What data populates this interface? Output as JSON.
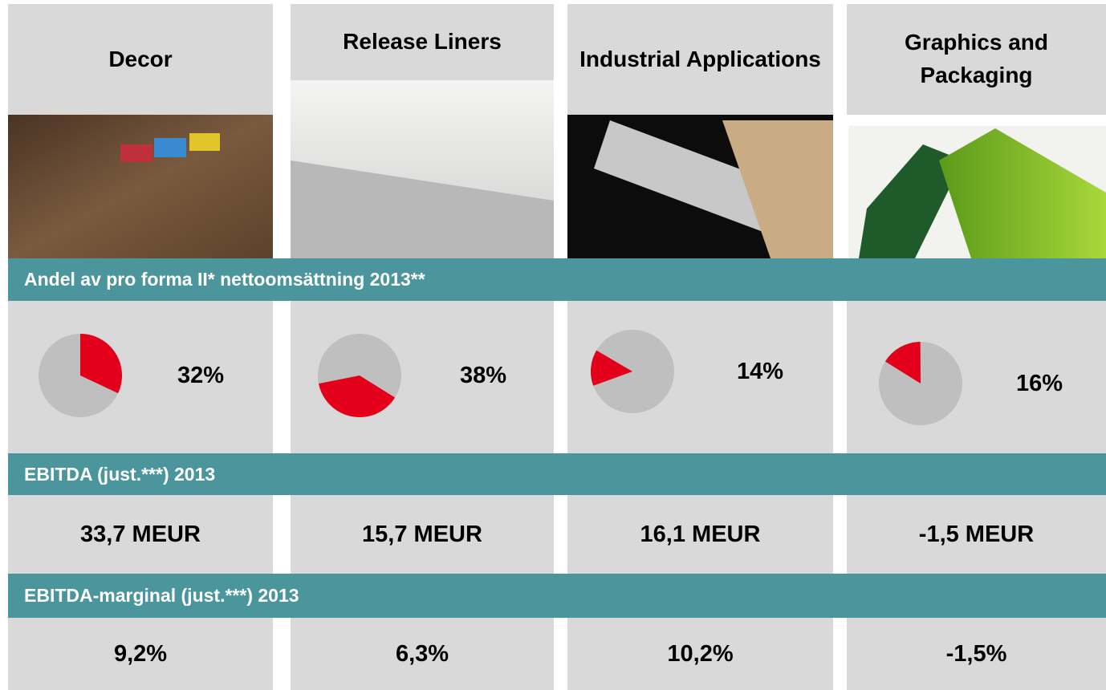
{
  "segments": [
    {
      "name": "Decor",
      "share": 32,
      "share_label": "32%",
      "ebitda": "33,7 MEUR",
      "margin": "9,2%"
    },
    {
      "name": "Release Liners",
      "share": 38,
      "share_label": "38%",
      "ebitda": "15,7 MEUR",
      "margin": "6,3%"
    },
    {
      "name": "Industrial Applications",
      "share": 14,
      "share_label": "14%",
      "ebitda": "16,1 MEUR",
      "margin": "10,2%"
    },
    {
      "name": "Graphics and Packaging",
      "share": 16,
      "share_label": "16%",
      "ebitda": "-1,5 MEUR",
      "margin": "-1,5%"
    }
  ],
  "bands": {
    "share": "Andel av pro forma II* nettoomsättning 2013**",
    "ebitda": "EBITDA (just.***) 2013",
    "margin": "EBITDA-marginal (just.***) 2013"
  }
}
